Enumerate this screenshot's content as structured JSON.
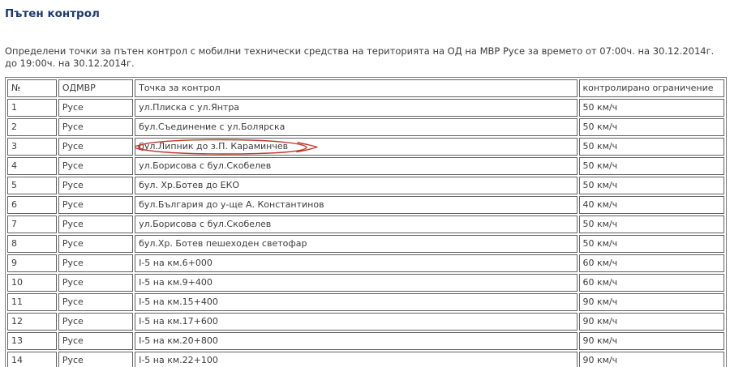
{
  "page": {
    "title": "Пътен контрол",
    "intro": "Определени точки за пътен контрол с мобилни технически средства на територията на ОД на МВР Русе за времето от 07:00ч. на 30.12.2014г. до 19:00ч. на 30.12.2014г."
  },
  "colors": {
    "title_text": "#1c3a72",
    "body_text": "#3c3c3c",
    "table_border": "#616161",
    "annotation_red": "#c0392b"
  },
  "table": {
    "headers": [
      "№",
      "ОДМВР",
      "Точка за контрол",
      "контролирано ограничение"
    ],
    "rows": [
      [
        "1",
        "Русе",
        "ул.Плиска с ул.Янтра",
        "50 км/ч"
      ],
      [
        "2",
        "Русе",
        "бул.Съединение с ул.Болярска",
        "50 км/ч"
      ],
      [
        "3",
        "Русе",
        "бул.Липник до з.П. Караминчев",
        "50 км/ч"
      ],
      [
        "4",
        "Русе",
        "ул.Борисова с бул.Скобелев",
        "50 км/ч"
      ],
      [
        "5",
        "Русе",
        "бул. Хр.Ботев до ЕКО",
        "50 км/ч"
      ],
      [
        "6",
        "Русе",
        "бул.България до у-ще А. Константинов",
        "40 км/ч"
      ],
      [
        "7",
        "Русе",
        "ул.Борисова с бул.Скобелев",
        "50 км/ч"
      ],
      [
        "8",
        "Русе",
        "бул.Хр. Ботев пешеходен светофар",
        "50 км/ч"
      ],
      [
        "9",
        "Русе",
        "I-5 на км.6+000",
        "60 км/ч"
      ],
      [
        "10",
        "Русе",
        "I-5 на км.9+400",
        "60 км/ч"
      ],
      [
        "11",
        "Русе",
        "I-5 на км.15+400",
        "90 км/ч"
      ],
      [
        "12",
        "Русе",
        "I-5 на км.17+600",
        "90 км/ч"
      ],
      [
        "13",
        "Русе",
        "I-5 на км.20+800",
        "90 км/ч"
      ],
      [
        "14",
        "Русе",
        "I-5 на км.22+100",
        "90 км/ч"
      ],
      [
        "",
        "",
        "",
        ""
      ]
    ]
  },
  "annotation": {
    "shape": "hand-drawn-red-ellipse-with-arrow",
    "row_index": 2,
    "cell_index": 2,
    "target_text": "бул.Липник до з.П. Караминчев",
    "color": "#c0392b"
  }
}
